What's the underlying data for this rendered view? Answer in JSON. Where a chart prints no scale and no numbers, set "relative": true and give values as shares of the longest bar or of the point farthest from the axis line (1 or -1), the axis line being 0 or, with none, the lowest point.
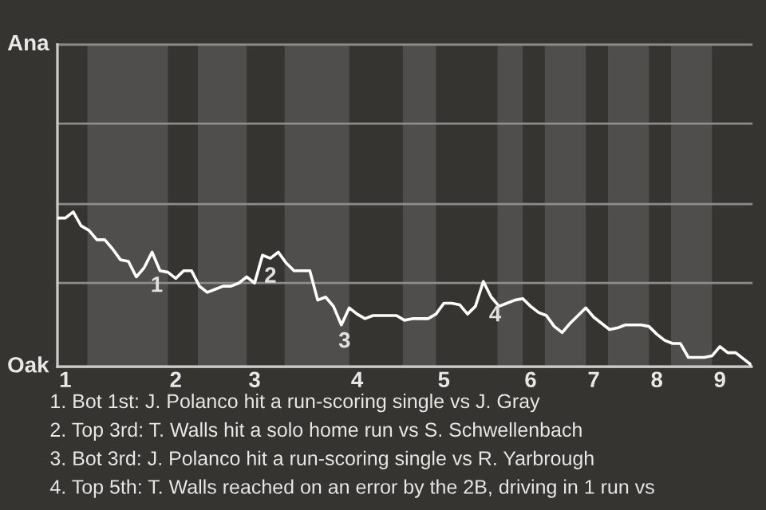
{
  "chart_data": {
    "type": "line",
    "relative": true,
    "categories": [
      null,
      "1",
      null,
      null,
      null,
      null,
      null,
      null,
      null,
      null,
      null,
      null,
      null,
      null,
      null,
      "2",
      null,
      null,
      null,
      null,
      null,
      null,
      null,
      null,
      null,
      "3",
      null,
      null,
      null,
      null,
      null,
      null,
      null,
      null,
      null,
      null,
      null,
      null,
      "4",
      null,
      null,
      null,
      null,
      null,
      null,
      null,
      null,
      null,
      null,
      "5",
      null,
      null,
      null,
      null,
      null,
      null,
      null,
      null,
      null,
      null,
      "6",
      null,
      null,
      null,
      null,
      null,
      null,
      null,
      "7",
      null,
      null,
      null,
      null,
      null,
      null,
      null,
      "8",
      null,
      null,
      null,
      null,
      null,
      null,
      null,
      "9",
      null,
      null,
      null,
      null
    ],
    "series": [
      {
        "color": "#ffffff",
        "values": [
          0.96,
          0.96,
          1.0,
          0.91,
          0.88,
          0.82,
          0.82,
          0.76,
          0.69,
          0.68,
          0.58,
          0.64,
          0.74,
          0.62,
          0.61,
          0.57,
          0.62,
          0.62,
          0.52,
          0.48,
          0.5,
          0.52,
          0.52,
          0.54,
          0.58,
          0.54,
          0.72,
          0.7,
          0.74,
          0.67,
          0.62,
          0.62,
          0.62,
          0.43,
          0.45,
          0.39,
          0.27,
          0.38,
          0.34,
          0.31,
          0.33,
          0.33,
          0.33,
          0.33,
          0.3,
          0.31,
          0.31,
          0.31,
          0.34,
          0.41,
          0.41,
          0.4,
          0.34,
          0.39,
          0.55,
          0.45,
          0.39,
          0.41,
          0.43,
          0.44,
          0.39,
          0.35,
          0.33,
          0.26,
          0.22,
          0.28,
          0.33,
          0.38,
          0.32,
          0.28,
          0.24,
          0.25,
          0.27,
          0.27,
          0.27,
          0.26,
          0.21,
          0.17,
          0.15,
          0.15,
          0.06,
          0.06,
          0.06,
          0.07,
          0.13,
          0.09,
          0.09,
          0.05,
          0.01
        ]
      }
    ],
    "ref_lines": [
      {
        "axis": "y",
        "value": 0,
        "label": "Oak",
        "color": "#c8c8c8"
      },
      {
        "axis": "y",
        "value": 0.54,
        "color": "#8c8c8c"
      },
      {
        "axis": "y",
        "value": 1.05,
        "color": "#8c8c8c"
      },
      {
        "axis": "y",
        "value": 1.57,
        "color": "#8c8c8c"
      },
      {
        "axis": "y",
        "value": 2.08,
        "label": "Ana",
        "color": "#8c8c8c"
      }
    ],
    "annotations": [
      "1",
      "2",
      "3",
      "4",
      "1. Bot 1st: J. Polanco hit a run-scoring single vs J. Gray",
      "2. Top 3rd: T. Walls hit a solo home run vs S. Schwellenbach",
      "3. Bot 3rd: J. Polanco hit a run-scoring single vs R. Yarbrough",
      "4. Top 5th: T. Walls reached on an error by the 2B, driving in 1 run vs"
    ],
    "marker": "none",
    "line_style": "solid"
  }
}
